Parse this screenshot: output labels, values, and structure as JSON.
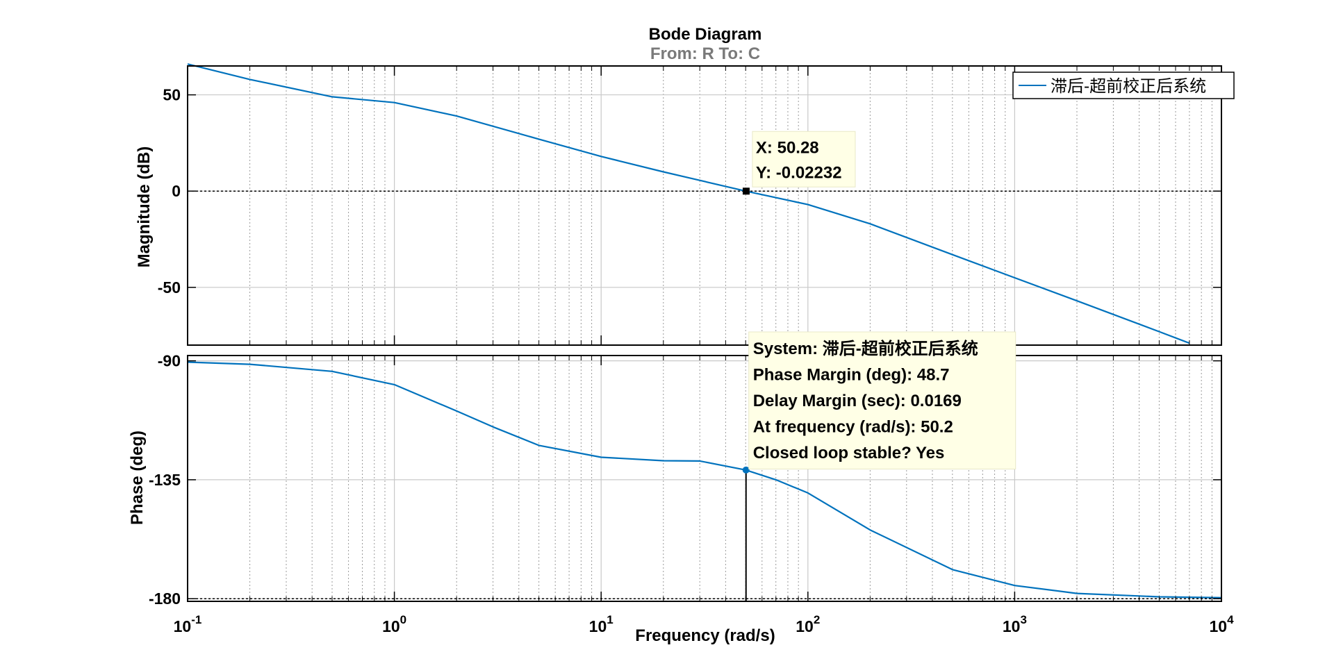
{
  "chart_data": {
    "type": "line",
    "title": "Bode Diagram",
    "subtitle": "From: R  To: C",
    "xlabel": "Frequency  (rad/s)",
    "xscale": "log",
    "xlim": [
      0.1,
      10000
    ],
    "x_tick_labels": [
      {
        "base": "10",
        "exp": "-1"
      },
      {
        "base": "10",
        "exp": "0"
      },
      {
        "base": "10",
        "exp": "1"
      },
      {
        "base": "10",
        "exp": "2"
      },
      {
        "base": "10",
        "exp": "3"
      },
      {
        "base": "10",
        "exp": "4"
      }
    ],
    "grid": true,
    "legend": {
      "placement": "top-right",
      "entries": [
        "滞后-超前校正后系统"
      ]
    },
    "series_color": "#0072BD",
    "panels": [
      {
        "name": "magnitude",
        "ylabel": "Magnitude (dB)",
        "ylim": [
          -80,
          65
        ],
        "yticks": [
          -50,
          0,
          50
        ],
        "ytick_labels": [
          "-50",
          "0",
          "50"
        ],
        "reference_line": 0,
        "series": [
          {
            "name": "滞后-超前校正后系统",
            "x": [
              0.1,
              0.2,
              0.5,
              1,
              2,
              5,
              10,
              20,
              50,
              100,
              200,
              500,
              1000,
              2000,
              5000,
              7000
            ],
            "y": [
              66,
              58,
              49,
              46,
              39,
              27,
              18,
              10,
              0,
              -7,
              -17,
              -33,
              -45,
              -57,
              -73,
              -79
            ]
          }
        ],
        "datatip": {
          "x": 50.28,
          "y": -0.02232,
          "lines": [
            "X: 50.28",
            "Y: -0.02232"
          ]
        }
      },
      {
        "name": "phase",
        "ylabel": "Phase (deg)",
        "ylim": [
          -181,
          -88
        ],
        "yticks": [
          -180,
          -135,
          -90
        ],
        "ytick_labels": [
          "-180",
          "-135",
          "-90"
        ],
        "reference_line": -180,
        "series": [
          {
            "name": "滞后-超前校正后系统",
            "x": [
              0.1,
              0.2,
              0.5,
              1,
              2,
              3,
              5,
              10,
              20,
              30,
              50,
              70,
              100,
              200,
              500,
              1000,
              2000,
              5000,
              10000
            ],
            "y": [
              -90.5,
              -91.3,
              -94.0,
              -99.0,
              -109,
              -115,
              -122,
              -126.5,
              -127.8,
              -127.9,
              -131.3,
              -135,
              -140,
              -154,
              -169,
              -175,
              -178,
              -179.3,
              -179.6
            ]
          }
        ],
        "marker": {
          "x": 50.2,
          "y": -131.3
        },
        "datatip": {
          "lines": [
            "System: 滞后-超前校正后系统",
            "Phase Margin (deg): 48.7",
            "Delay Margin (sec): 0.0169",
            "At frequency (rad/s): 50.2",
            "Closed loop stable? Yes"
          ]
        }
      }
    ]
  }
}
